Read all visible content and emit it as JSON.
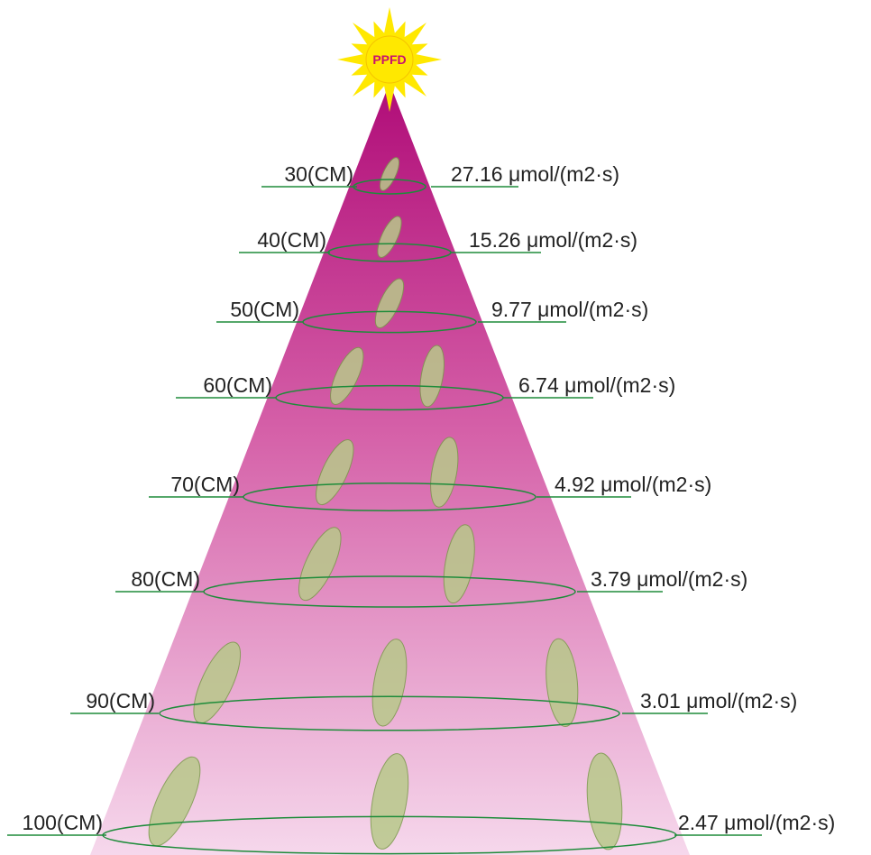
{
  "sun": {
    "label": "PPFD"
  },
  "levels": [
    {
      "distance": "30(CM)",
      "ppfd": "27.16 μmol/(m2·s)"
    },
    {
      "distance": "40(CM)",
      "ppfd": "15.26 μmol/(m2·s)"
    },
    {
      "distance": "50(CM)",
      "ppfd": "9.77 μmol/(m2·s)"
    },
    {
      "distance": "60(CM)",
      "ppfd": "6.74 μmol/(m2·s)"
    },
    {
      "distance": "70(CM)",
      "ppfd": "4.92 μmol/(m2·s)"
    },
    {
      "distance": "80(CM)",
      "ppfd": "3.79 μmol/(m2·s)"
    },
    {
      "distance": "90(CM)",
      "ppfd": "3.01 μmol/(m2·s)"
    },
    {
      "distance": "100(CM)",
      "ppfd": "2.47 μmol/(m2·s)"
    }
  ]
}
